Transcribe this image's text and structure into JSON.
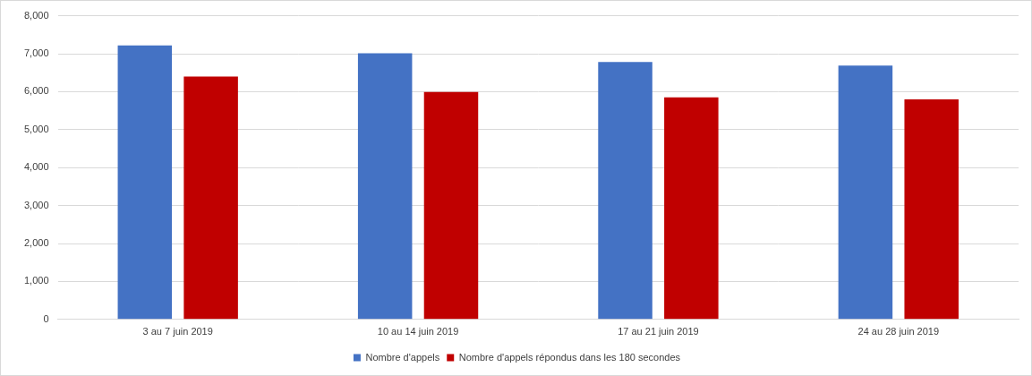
{
  "chart_data": {
    "type": "bar",
    "categories": [
      "3 au 7 juin 2019",
      "10 au 14 juin 2019",
      "17 au 21 juin 2019",
      "24 au 28 juin 2019"
    ],
    "series": [
      {
        "name": "Nombre d'appels",
        "color": "#4472c4",
        "values": [
          7220,
          7010,
          6780,
          6690
        ]
      },
      {
        "name": "Nombre d'appels répondus dans les 180 secondes",
        "color": "#c00000",
        "values": [
          6400,
          5990,
          5850,
          5800
        ]
      }
    ],
    "ylim": [
      0,
      8000
    ],
    "yticks": [
      0,
      {
        "value": 1000,
        "label": "1,000"
      },
      {
        "value": 2000,
        "label": "2,000"
      },
      {
        "value": 3000,
        "label": "3,000"
      },
      {
        "value": 4000,
        "label": "4,000"
      },
      {
        "value": 5000,
        "label": "5,000"
      },
      {
        "value": 6000,
        "label": "6,000"
      },
      {
        "value": 7000,
        "label": "7,000"
      },
      {
        "value": 8000,
        "label": "8,000"
      }
    ],
    "grid": true,
    "legend": "bottom"
  }
}
